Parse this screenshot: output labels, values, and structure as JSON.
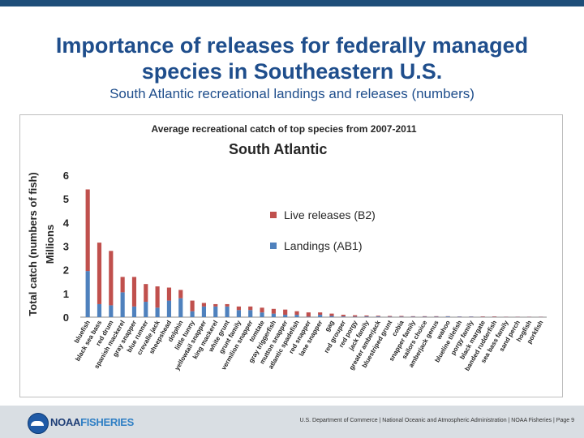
{
  "slide": {
    "title_line1": "Importance of releases for federally managed",
    "title_line2": "species in Southeastern  U.S.",
    "subtitle": "South Atlantic recreational landings and releases (numbers)"
  },
  "footer": {
    "logo_noaa": "NOAA",
    "logo_fisheries": "FISHERIES",
    "text": "U.S. Department of Commerce | National Oceanic and Atmospheric Administration | NOAA Fisheries | Page 9"
  },
  "colors": {
    "releases": "#c0504d",
    "landings": "#4f81bd",
    "title": "#1f4e8c",
    "axis_text": "#262626"
  },
  "chart_data": {
    "type": "bar",
    "stacked": true,
    "title": "Average recreational catch of top species from 2007-2011",
    "subtitle": "South Atlantic",
    "ylabel_line1": "Total catch (numbers of fish)",
    "ylabel_line2": "Millions",
    "ylim": [
      0,
      6
    ],
    "yticks": [
      0,
      1,
      2,
      3,
      4,
      5,
      6
    ],
    "legend_position": "center-right",
    "categories": [
      "bluefish",
      "black sea bass",
      "red drum",
      "spanish mackerel",
      "gray snapper",
      "blue runner",
      "crevalle jack",
      "sheepshead",
      "dolphin",
      "little tunny",
      "yellowtail snapper",
      "king mackerel",
      "white grunt",
      "grunt family",
      "vermilion snapper",
      "tomtate",
      "gray triggerfish",
      "mutton snapper",
      "atlantic spadefish",
      "red snapper",
      "lane snapper",
      "gag",
      "red grouper",
      "red porgy",
      "jack family",
      "greater amberjack",
      "bluestriped grunt",
      "cobia",
      "snapper family",
      "sailors choice",
      "amberjack genus",
      "wahoo",
      "blueline tilefish",
      "porgy family",
      "black margate",
      "banded rudderfish",
      "sea bass family",
      "sand perch",
      "hogfish",
      "porkfish"
    ],
    "series": [
      {
        "name": "Landings (AB1)",
        "values": [
          1.95,
          0.55,
          0.5,
          1.05,
          0.45,
          0.65,
          0.4,
          0.7,
          0.8,
          0.25,
          0.45,
          0.45,
          0.45,
          0.3,
          0.3,
          0.2,
          0.15,
          0.1,
          0.1,
          0.02,
          0.1,
          0.05,
          0.03,
          0.02,
          0.03,
          0.03,
          0.02,
          0.02,
          0.02,
          0.02,
          0.02,
          0.03,
          0.02,
          0.02,
          0.01,
          0.01,
          0.01,
          0.01,
          0.01,
          0.01
        ]
      },
      {
        "name": "Live releases (B2)",
        "values": [
          3.45,
          2.6,
          2.3,
          0.65,
          1.25,
          0.75,
          0.9,
          0.55,
          0.35,
          0.45,
          0.15,
          0.1,
          0.1,
          0.15,
          0.15,
          0.2,
          0.2,
          0.22,
          0.15,
          0.18,
          0.1,
          0.1,
          0.07,
          0.06,
          0.04,
          0.03,
          0.03,
          0.03,
          0.02,
          0.02,
          0.02,
          0.01,
          0.01,
          0.01,
          0.02,
          0.02,
          0.01,
          0.01,
          0.01,
          0.01
        ]
      }
    ]
  }
}
